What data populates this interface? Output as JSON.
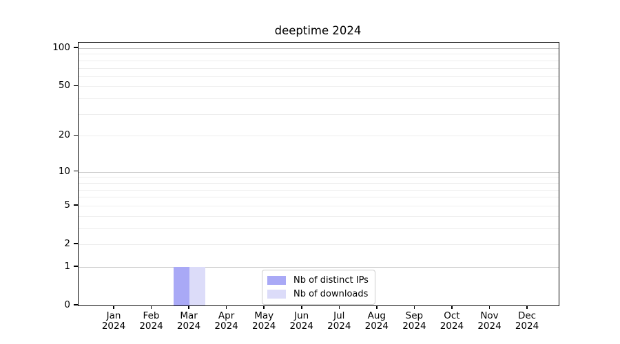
{
  "chart_data": {
    "type": "bar",
    "title": "deeptime 2024",
    "year": "2024",
    "categories": [
      "Jan",
      "Feb",
      "Mar",
      "Apr",
      "May",
      "Jun",
      "Jul",
      "Aug",
      "Sep",
      "Oct",
      "Nov",
      "Dec"
    ],
    "series": [
      {
        "name": "Nb of distinct IPs",
        "color": "#a9a9f6",
        "values": [
          0,
          0,
          1,
          0,
          0,
          0,
          0,
          0,
          0,
          0,
          0,
          0
        ]
      },
      {
        "name": "Nb of downloads",
        "color": "#dcdcf9",
        "values": [
          0,
          0,
          1,
          0,
          0,
          0,
          0,
          0,
          0,
          0,
          0,
          0
        ]
      }
    ],
    "yaxis": {
      "scale": "log10(1+y)",
      "ylim": [
        0,
        110
      ],
      "tick_values": [
        0,
        1,
        2,
        5,
        10,
        20,
        50,
        100
      ],
      "major_gridlines": [
        1,
        10,
        100
      ],
      "minor_gridlines": [
        2,
        3,
        4,
        5,
        6,
        7,
        8,
        9,
        20,
        30,
        40,
        50,
        60,
        70,
        80,
        90
      ]
    },
    "xaxis": {
      "tick_labels_two_lines": true
    },
    "legend": {
      "position": "inside-lower-center"
    },
    "colors": {
      "grid_major": "#c6c6c6",
      "grid_minor": "#ededed",
      "spine": "#000000",
      "text": "#000000",
      "background": "#ffffff"
    }
  }
}
